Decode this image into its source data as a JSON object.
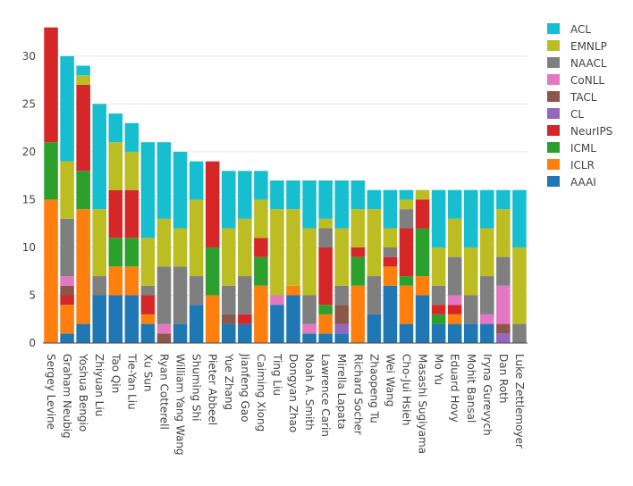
{
  "chart_data": {
    "type": "bar",
    "stacked": true,
    "title": "",
    "xlabel": "",
    "ylabel": "",
    "ylim": [
      0,
      34
    ],
    "yticks": [
      0,
      5,
      10,
      15,
      20,
      25,
      30
    ],
    "legend_position": "right",
    "categories": [
      "Sergey Levine",
      "Graham Neubig",
      "Yoshua Bengio",
      "Zhiyuan Liu",
      "Tao Qin",
      "Tie-Yan Liu",
      "Xu Sun",
      "Ryan Cotterell",
      "William Yang Wang",
      "Shuming Shi",
      "Pieter Abbeel",
      "Yue Zhang",
      "Jianfeng Gao",
      "Caiming Xiong",
      "Ting Liu",
      "Dongyan Zhao",
      "Noah A. Smith",
      "Lawrence Carin",
      "Mirella Lapata",
      "Richard Socher",
      "Zhaopeng Tu",
      "Wei Wang",
      "Cho-Jui Hsieh",
      "Masashi Sugiyama",
      "Mo Yu",
      "Eduard Hovy",
      "Mohit Bansal",
      "Iryna Gurevych",
      "Dan Roth",
      "Luke Zettlemoyer"
    ],
    "series": [
      {
        "name": "AAAI",
        "color": "#1f77b4",
        "values": [
          0,
          1,
          2,
          5,
          5,
          5,
          2,
          0,
          2,
          4,
          0,
          2,
          2,
          0,
          4,
          5,
          1,
          1,
          1,
          0,
          3,
          6,
          2,
          5,
          2,
          2,
          2,
          2,
          0,
          0
        ]
      },
      {
        "name": "ICLR",
        "color": "#ff7f0e",
        "values": [
          15,
          3,
          12,
          0,
          3,
          3,
          1,
          0,
          0,
          0,
          5,
          0,
          0,
          6,
          0,
          1,
          0,
          2,
          0,
          6,
          0,
          2,
          4,
          2,
          0,
          1,
          0,
          0,
          0,
          0
        ]
      },
      {
        "name": "ICML",
        "color": "#2ca02c",
        "values": [
          6,
          0,
          4,
          0,
          3,
          3,
          0,
          0,
          0,
          0,
          5,
          0,
          0,
          3,
          0,
          0,
          0,
          1,
          0,
          3,
          0,
          0,
          1,
          5,
          1,
          0,
          0,
          0,
          0,
          0
        ]
      },
      {
        "name": "NeurIPS",
        "color": "#d62728",
        "values": [
          12,
          1,
          9,
          0,
          5,
          5,
          2,
          0,
          0,
          0,
          9,
          0,
          1,
          2,
          0,
          0,
          0,
          6,
          0,
          1,
          0,
          1,
          5,
          3,
          1,
          1,
          0,
          0,
          0,
          0
        ]
      },
      {
        "name": "CL",
        "color": "#9467bd",
        "values": [
          0,
          0,
          0,
          0,
          0,
          0,
          0,
          0,
          0,
          0,
          0,
          0,
          0,
          0,
          0,
          0,
          0,
          0,
          1,
          0,
          0,
          0,
          0,
          0,
          0,
          0,
          0,
          0,
          1,
          0
        ]
      },
      {
        "name": "TACL",
        "color": "#8c564b",
        "values": [
          0,
          1,
          0,
          0,
          0,
          0,
          0,
          1,
          0,
          0,
          0,
          1,
          0,
          0,
          0,
          0,
          0,
          0,
          2,
          0,
          0,
          0,
          0,
          0,
          0,
          0,
          0,
          0,
          1,
          0
        ]
      },
      {
        "name": "CoNLL",
        "color": "#e377c2",
        "values": [
          0,
          1,
          0,
          0,
          0,
          0,
          0,
          1,
          0,
          0,
          0,
          0,
          0,
          0,
          1,
          0,
          1,
          0,
          0,
          0,
          0,
          0,
          0,
          0,
          0,
          1,
          0,
          1,
          4,
          0
        ]
      },
      {
        "name": "NAACL",
        "color": "#7f7f7f",
        "values": [
          0,
          6,
          0,
          2,
          0,
          0,
          1,
          6,
          6,
          3,
          0,
          3,
          4,
          0,
          0,
          0,
          3,
          2,
          2,
          0,
          4,
          1,
          2,
          0,
          2,
          4,
          3,
          4,
          3,
          2
        ]
      },
      {
        "name": "EMNLP",
        "color": "#bcbd22",
        "values": [
          0,
          6,
          1,
          7,
          5,
          4,
          5,
          5,
          4,
          8,
          0,
          6,
          6,
          4,
          9,
          8,
          7,
          1,
          6,
          4,
          7,
          2,
          1,
          1,
          4,
          4,
          5,
          5,
          5,
          8
        ]
      },
      {
        "name": "ACL",
        "color": "#17becf",
        "values": [
          0,
          11,
          1,
          11,
          3,
          3,
          10,
          8,
          8,
          4,
          0,
          6,
          5,
          3,
          3,
          3,
          5,
          4,
          5,
          3,
          2,
          4,
          1,
          0,
          6,
          3,
          6,
          4,
          2,
          6
        ]
      }
    ],
    "legend_order": [
      "ACL",
      "EMNLP",
      "NAACL",
      "CoNLL",
      "TACL",
      "CL",
      "NeurIPS",
      "ICML",
      "ICLR",
      "AAAI"
    ]
  }
}
